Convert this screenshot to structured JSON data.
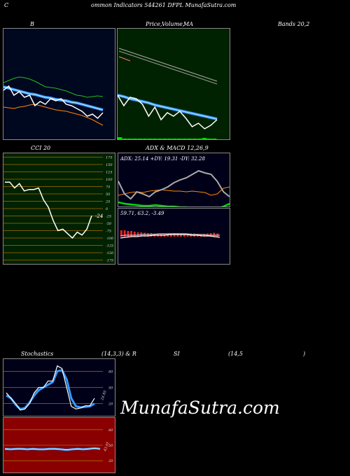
{
  "header": {
    "c": "C",
    "main": "ommon  Indicators 544261 DFPL  MunafaSutra.com"
  },
  "titles": {
    "bb": "B",
    "pv_price": "Price,",
    "pv_volume": "Volume,",
    "pv_ma": "MA",
    "bands": "Bands 20,2",
    "cci": "CCI 20",
    "adx_macd": "ADX  & MACD 12,26,9",
    "stoch": "Stochastics",
    "stoch_params": "(14,3,3) & R",
    "si": "SI",
    "rsi_params": "(14,5",
    "rsi_close": ")"
  },
  "watermark": "MunafaSutra.com",
  "colors": {
    "bb_bg": "#000820",
    "pv_bg": "#002200",
    "cci_bg": "#002200",
    "adx_bg": "#000018",
    "rsi_bg": "#8a0000",
    "price": "#ffffff",
    "ma_blue": "#3399ff",
    "upper_band": "#22bb22",
    "lower_band": "#ff8800",
    "grid_orange": "#aa6a00",
    "adx_plus": "#aaaaaa",
    "adx_minus": "#ff8800",
    "adx_line": "#00dd00",
    "macd_hist": "#ff2222"
  },
  "chart_data": [
    {
      "id": "bollinger",
      "type": "line",
      "series": [
        {
          "key": "upper",
          "values": [
            77,
            74,
            71,
            69,
            70,
            72,
            75,
            79,
            83,
            84,
            85,
            87,
            89,
            92,
            95,
            96,
            98,
            97,
            96,
            97
          ]
        },
        {
          "key": "middle",
          "values": [
            83,
            85,
            87,
            89,
            91,
            93,
            94,
            96,
            98,
            99,
            101,
            102,
            103,
            105,
            106,
            108,
            110,
            112,
            114,
            116
          ]
        },
        {
          "key": "price",
          "values": [
            88,
            82,
            95,
            90,
            98,
            95,
            110,
            104,
            108,
            100,
            103,
            100,
            108,
            110,
            114,
            118,
            125,
            122,
            128,
            120
          ]
        },
        {
          "key": "lower",
          "values": [
            112,
            113,
            114,
            112,
            111,
            109,
            108,
            110,
            112,
            114,
            116,
            117,
            118,
            120,
            122,
            124,
            127,
            130,
            134,
            138
          ]
        }
      ]
    },
    {
      "id": "price-volume-ma",
      "type": "line",
      "series": [
        {
          "key": "price",
          "values": [
            95,
            110,
            98,
            100,
            108,
            125,
            112,
            130,
            120,
            125,
            118,
            128,
            140,
            135,
            143,
            138,
            130
          ]
        },
        {
          "key": "ma",
          "values": [
            95,
            97,
            100,
            102,
            104,
            106,
            109,
            111,
            113,
            115,
            117,
            119,
            121,
            123,
            125,
            127,
            129
          ]
        },
        {
          "key": "volume",
          "values": [
            3,
            1,
            1,
            1,
            1,
            1,
            1,
            1,
            1,
            1,
            1,
            1,
            1,
            1,
            1,
            1,
            1,
            2,
            1,
            1
          ]
        }
      ]
    },
    {
      "id": "cci",
      "type": "line",
      "ticks": [
        175,
        150,
        125,
        100,
        75,
        50,
        25,
        0,
        -25,
        -50,
        -75,
        -100,
        -125,
        -150,
        -175
      ],
      "ylim": [
        -188,
        188
      ],
      "current": "-24",
      "values": [
        90,
        90,
        70,
        85,
        60,
        65,
        65,
        70,
        30,
        5,
        -40,
        -75,
        -70,
        -85,
        -100,
        -80,
        -90,
        -70,
        -24
      ]
    },
    {
      "id": "adx",
      "type": "line",
      "readout": "ADX: 25.14  +DY: 19.31 -DY: 32.28",
      "series": [
        {
          "key": "plus_di",
          "values": [
            40,
            58,
            65,
            55,
            58,
            62,
            55,
            52,
            48,
            42,
            38,
            35,
            30,
            25,
            28,
            30,
            40,
            55,
            62
          ]
        },
        {
          "key": "minus_di",
          "values": [
            60,
            58,
            56,
            55,
            56,
            54,
            53,
            52,
            53,
            54,
            54,
            55,
            54,
            55,
            56,
            60,
            58,
            50,
            48
          ]
        },
        {
          "key": "adx",
          "values": [
            70,
            72,
            73,
            74,
            75,
            75,
            74,
            75,
            76,
            76,
            77,
            77,
            78,
            78,
            78,
            78,
            79,
            76,
            72
          ]
        }
      ]
    },
    {
      "id": "macd",
      "type": "bar",
      "readout": "59.71,  63.2,  -3.49",
      "series": [
        {
          "key": "hist",
          "values": [
            0.9,
            0.9,
            0.8,
            0.8,
            0.7,
            0.6,
            0.6,
            0.55,
            0.5,
            0.5,
            0.45,
            0.45,
            0.4,
            0.4,
            0.45,
            0.45,
            0.5,
            0.5,
            0.45,
            0.4,
            0.4,
            0.45,
            0.45,
            0.4,
            0.35,
            0.4,
            0.45,
            0.5,
            0.55,
            0.45
          ]
        },
        {
          "key": "macd",
          "values": [
            22,
            21,
            20,
            20,
            19,
            19,
            18,
            18,
            18,
            17,
            17,
            17,
            17,
            18,
            18,
            19,
            19,
            20,
            21
          ]
        },
        {
          "key": "signal",
          "values": [
            19,
            18,
            18,
            18,
            17,
            17,
            17,
            16,
            16,
            16,
            16,
            16,
            16,
            17,
            17,
            17,
            18,
            18,
            18
          ]
        }
      ]
    },
    {
      "id": "stochastics",
      "type": "line",
      "ticks": [
        80,
        50,
        20
      ],
      "ylim": [
        0,
        100
      ],
      "current": "24.95",
      "series": [
        {
          "key": "k",
          "values": [
            40,
            30,
            20,
            8,
            10,
            20,
            40,
            50,
            50,
            62,
            62,
            90,
            85,
            50,
            15,
            10,
            12,
            16,
            16,
            30
          ]
        },
        {
          "key": "d",
          "values": [
            35,
            30,
            18,
            10,
            12,
            22,
            35,
            45,
            50,
            55,
            60,
            80,
            82,
            65,
            30,
            15,
            13,
            14,
            15,
            20
          ]
        }
      ]
    },
    {
      "id": "rsi",
      "type": "line",
      "ticks": [
        80,
        50,
        20
      ],
      "ylim": [
        0,
        100
      ],
      "current": "43.01",
      "series": [
        {
          "key": "rsi",
          "values": [
            43,
            42,
            43,
            43,
            42,
            43,
            42,
            42,
            43,
            43,
            42,
            41,
            42,
            43,
            42,
            43,
            44,
            43
          ]
        }
      ]
    }
  ]
}
